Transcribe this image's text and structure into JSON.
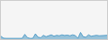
{
  "chart_data": {
    "type": "area",
    "values": [
      30,
      10,
      8,
      8,
      8,
      8,
      8,
      8,
      8,
      50,
      15,
      8,
      8,
      55,
      20,
      15,
      40,
      25,
      35,
      45,
      30,
      40,
      35,
      45,
      38,
      42,
      35,
      45,
      38,
      8,
      70,
      25,
      20,
      45,
      30,
      35,
      40,
      35,
      38,
      42,
      40
    ],
    "color": "#3a8fc0",
    "xlim": [
      0,
      40
    ],
    "ylim": [
      0,
      400
    ],
    "grid": false,
    "tick_labels": false
  }
}
